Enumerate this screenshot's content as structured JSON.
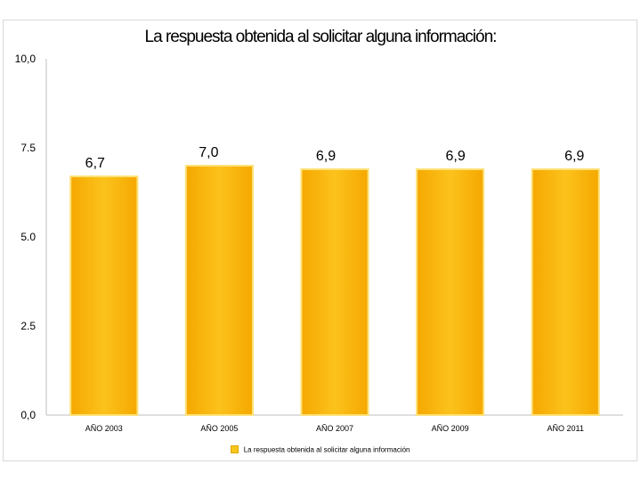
{
  "chart_data": {
    "type": "bar",
    "title": "La respuesta obtenida al solicitar alguna información:",
    "categories": [
      "AÑO 2003",
      "AÑO 2005",
      "AÑO 2007",
      "AÑO 2009",
      "AÑO 2011"
    ],
    "series": [
      {
        "name": "La respuesta obtenida al solicitar alguna información",
        "values": [
          6.7,
          7.0,
          6.9,
          6.9,
          6.9
        ]
      }
    ],
    "data_labels": [
      "6,7",
      "7,0",
      "6,9",
      "6,9",
      "6,9"
    ],
    "ylim": [
      0,
      10
    ],
    "yticks": [
      0,
      2.5,
      5,
      7.5,
      10
    ],
    "ytick_labels": [
      "0,0",
      "2.5",
      "5.0",
      "7.5",
      "10,0"
    ],
    "xlabel": "",
    "ylabel": "",
    "grid": false,
    "legend_position": "bottom",
    "bar_color": "#f9b812"
  }
}
